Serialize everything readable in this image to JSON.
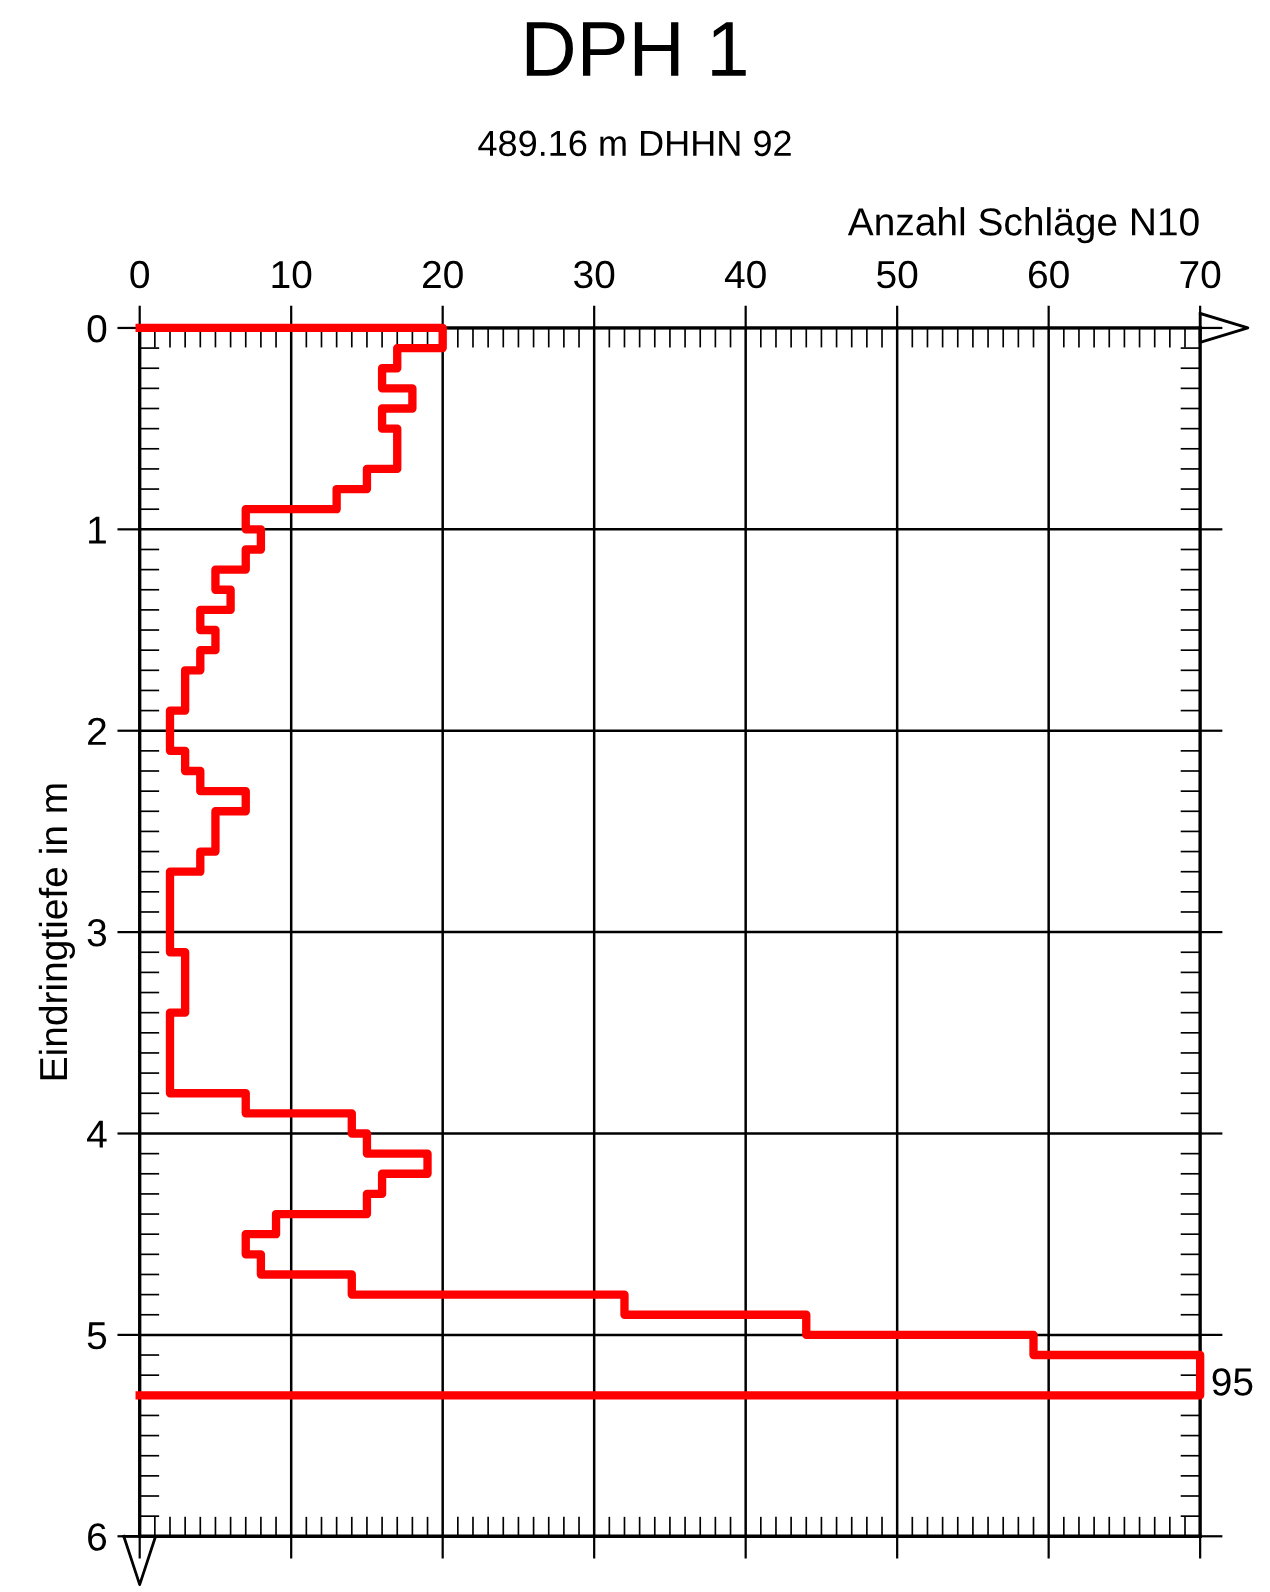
{
  "chart_data": {
    "type": "line",
    "orientation": "horizontal",
    "title": "DPH 1",
    "subtitle": "489.16 m DHHN 92",
    "xlabel": "Anzahl Schläge N10",
    "ylabel": "Eindringtiefe in m",
    "x": [
      0,
      0,
      0.1,
      0.1,
      0.2,
      0.2,
      0.3,
      0.3,
      0.4,
      0.4,
      0.5,
      0.5,
      0.6,
      0.6,
      0.7,
      0.7,
      0.8,
      0.8,
      0.9,
      0.9,
      1.0,
      1.0,
      1.1,
      1.1,
      1.2,
      1.2,
      1.3,
      1.3,
      1.4,
      1.4,
      1.5,
      1.5,
      1.6,
      1.6,
      1.7,
      1.7,
      1.8,
      1.8,
      1.9,
      1.9,
      2.0,
      2.0,
      2.1,
      2.1,
      2.2,
      2.2,
      2.3,
      2.3,
      2.4,
      2.4,
      2.5,
      2.5,
      2.6,
      2.6,
      2.7,
      2.7,
      2.8,
      2.8,
      2.9,
      2.9,
      3.0,
      3.0,
      3.1,
      3.1,
      3.2,
      3.2,
      3.3,
      3.3,
      3.4,
      3.4,
      3.5,
      3.5,
      3.6,
      3.6,
      3.7,
      3.7,
      3.8,
      3.8,
      3.9,
      3.9,
      4.0,
      4.0,
      4.1,
      4.1,
      4.2,
      4.2,
      4.3,
      4.3,
      4.4,
      4.4,
      4.5,
      4.5,
      4.6,
      4.6,
      4.7,
      4.7,
      4.8,
      4.8,
      4.9,
      4.9,
      5.0,
      5.0,
      5.1,
      5.1,
      5.2,
      5.2,
      5.3,
      5.3
    ],
    "values": [
      0,
      20,
      20,
      17,
      17,
      16,
      16,
      18,
      18,
      16,
      16,
      17,
      17,
      17,
      17,
      15,
      15,
      13,
      13,
      7,
      7,
      8,
      8,
      7,
      7,
      5,
      5,
      6,
      6,
      4,
      4,
      5,
      5,
      4,
      4,
      3,
      3,
      3,
      3,
      2,
      2,
      2,
      2,
      3,
      3,
      4,
      4,
      7,
      7,
      5,
      5,
      5,
      5,
      4,
      4,
      2,
      2,
      2,
      2,
      2,
      2,
      2,
      2,
      3,
      3,
      3,
      3,
      3,
      3,
      2,
      2,
      2,
      2,
      2,
      2,
      2,
      2,
      7,
      7,
      14,
      14,
      15,
      15,
      19,
      19,
      16,
      16,
      15,
      15,
      9,
      9,
      7,
      7,
      8,
      8,
      14,
      14,
      32,
      32,
      44,
      44,
      59,
      59,
      70,
      70,
      70,
      70,
      0
    ],
    "color": "#ff0000",
    "xlim": [
      0,
      70
    ],
    "xticks": [
      0,
      10,
      20,
      30,
      40,
      50,
      60,
      70
    ],
    "ylim": [
      6,
      0
    ],
    "yticks": [
      0,
      1,
      2,
      3,
      4,
      5,
      6
    ],
    "grid": true,
    "annotations": [
      "95"
    ]
  }
}
